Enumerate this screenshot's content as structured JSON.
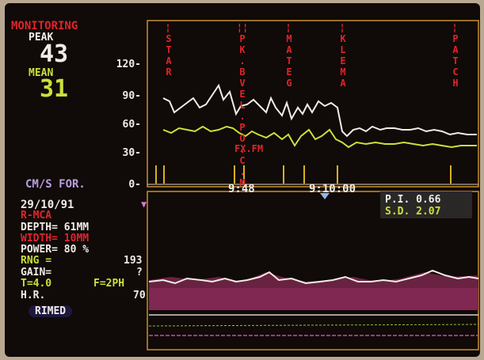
{
  "monitor": {
    "title": "MONITORING",
    "peak_label": "PEAK",
    "peak_value": "43",
    "mean_label": "MEAN",
    "mean_value": "31",
    "y_ticks": [
      "120-",
      "90-",
      "60-",
      "30-",
      "0-"
    ],
    "units_label": "CM/S FOR.",
    "time_labels": [
      "9:48",
      "9:10:00"
    ],
    "events": [
      "STAR",
      "PK.BVEL.PO.C.M",
      "MATEG",
      "KLEMA",
      "PATCH"
    ],
    "event_sub": [
      "",
      "FX.FM",
      "",
      "",
      ""
    ]
  },
  "patient": {
    "date": "29/10/91",
    "mode": "R-MCA",
    "depth": "DEPTH= 61MM",
    "width": "WIDTH= 10MM",
    "power": "POWER= 80 %",
    "rng": "RNG =",
    "rng_value": "193",
    "gain": "GAIN=",
    "gain_value": "?",
    "filter": "T=4.0",
    "freq": "F=2PH",
    "hr": "H.R.",
    "hr_value": "70",
    "button": "RIMED"
  },
  "indices": {
    "pi": "P.I.  0.66",
    "sd": "S.D.  2.07"
  },
  "colors": {
    "red": "#e0242a",
    "white": "#f2ece6",
    "yellow": "#cbe03a",
    "grid": "#c8902c",
    "spectrum": "#8a2a5a"
  }
}
